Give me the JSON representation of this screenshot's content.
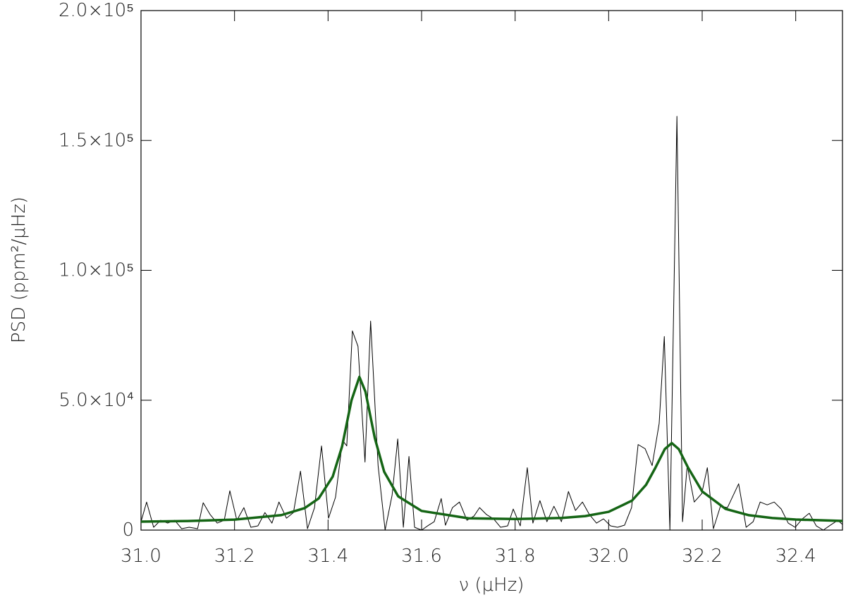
{
  "chart_data": {
    "type": "line",
    "xlabel": "ν  (μHz)",
    "ylabel": "PSD  (ppm²/μHz)",
    "xlim": [
      31.0,
      32.5
    ],
    "ylim": [
      0,
      200000
    ],
    "xticks": [
      {
        "value": 31.0,
        "label": "31.0"
      },
      31.2,
      31.4,
      31.6,
      31.8,
      {
        "value": 32.0,
        "label": "32.0"
      },
      32.2,
      32.4
    ],
    "yticks": [
      0,
      {
        "value": 50000,
        "label": "5.0×10⁴"
      },
      {
        "value": 100000,
        "label": "1.0×10⁵"
      },
      {
        "value": 150000,
        "label": "1.5×10⁵"
      },
      {
        "value": 200000,
        "label": "2.0×10⁵"
      }
    ],
    "series": [
      {
        "color": "#000000",
        "x": [
          31.0,
          31.012,
          31.027,
          31.042,
          31.057,
          31.072,
          31.087,
          31.103,
          31.121,
          31.133,
          31.148,
          31.163,
          31.178,
          31.19,
          31.205,
          31.22,
          31.235,
          31.25,
          31.265,
          31.28,
          31.295,
          31.311,
          31.326,
          31.341,
          31.356,
          31.371,
          31.386,
          31.401,
          31.416,
          31.431,
          31.44,
          31.452,
          31.464,
          31.479,
          31.491,
          31.507,
          31.522,
          31.537,
          31.549,
          31.561,
          31.573,
          31.585,
          31.6,
          31.615,
          31.627,
          31.642,
          31.651,
          31.666,
          31.681,
          31.697,
          31.712,
          31.724,
          31.739,
          31.754,
          31.769,
          31.784,
          31.796,
          31.811,
          31.826,
          31.838,
          31.853,
          31.868,
          31.883,
          31.899,
          31.914,
          31.929,
          31.944,
          31.959,
          31.974,
          31.989,
          32.004,
          32.019,
          32.034,
          32.049,
          32.063,
          32.078,
          32.093,
          32.108,
          32.119,
          32.131,
          32.146,
          32.158,
          32.168,
          32.183,
          32.199,
          32.211,
          32.224,
          32.239,
          32.254,
          32.278,
          32.294,
          32.309,
          32.324,
          32.339,
          32.354,
          32.369,
          32.384,
          32.399,
          32.414,
          32.429,
          32.444,
          32.459,
          32.474,
          32.49,
          32.5
        ],
        "values": [
          3240,
          10800,
          1080,
          3780,
          2700,
          3780,
          540,
          1080,
          540,
          10530,
          5940,
          2700,
          3780,
          15120,
          3780,
          8640,
          1080,
          1620,
          6750,
          2700,
          10800,
          4590,
          6750,
          22680,
          540,
          8640,
          32400,
          4590,
          12690,
          34560,
          32400,
          76680,
          70740,
          26190,
          80460,
          24840,
          0,
          13500,
          35100,
          1080,
          28350,
          1080,
          0,
          1890,
          3240,
          12150,
          1890,
          8640,
          10800,
          3780,
          5400,
          8640,
          5940,
          4320,
          1080,
          1620,
          8100,
          1620,
          24030,
          2700,
          11340,
          3240,
          9180,
          3240,
          14850,
          7560,
          10800,
          5940,
          2700,
          4320,
          1620,
          1080,
          1890,
          8640,
          32940,
          31320,
          24840,
          41040,
          74520,
          0,
          159300,
          3240,
          24840,
          10800,
          14040,
          24030,
          540,
          9180,
          8640,
          17820,
          1080,
          3240,
          10800,
          9720,
          10800,
          8100,
          2700,
          1080,
          4320,
          6480,
          1620,
          0,
          1890,
          3780,
          2160
        ]
      },
      {
        "color": "#156515",
        "x": [
          31.0,
          31.1,
          31.2,
          31.3,
          31.35,
          31.38,
          31.41,
          31.43,
          31.45,
          31.467,
          31.48,
          31.5,
          31.52,
          31.55,
          31.6,
          31.7,
          31.8,
          31.9,
          31.95,
          32.0,
          32.05,
          32.08,
          32.1,
          32.12,
          32.135,
          32.15,
          32.17,
          32.2,
          32.25,
          32.3,
          32.35,
          32.4,
          32.5
        ],
        "values": [
          3250,
          3490,
          4050,
          5770,
          8460,
          12200,
          20620,
          32210,
          49900,
          58965,
          53280,
          35400,
          22450,
          12990,
          7380,
          4550,
          4260,
          4670,
          5390,
          7035,
          11360,
          17430,
          24020,
          31180,
          33510,
          31170,
          23990,
          14890,
          8150,
          5720,
          4640,
          4070,
          3530
        ]
      }
    ]
  }
}
